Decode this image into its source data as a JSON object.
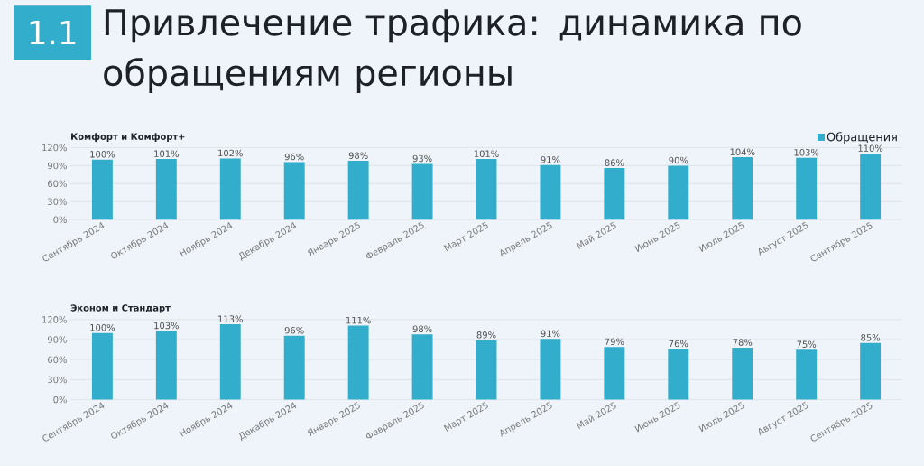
{
  "chart_data": [
    {
      "type": "bar",
      "title": "Комфорт и Комфорт+",
      "annotations": [
        "1.1",
        "Привлечение трафика: динамика по обращениям регионы"
      ],
      "categories": [
        "Сентябрь 2024",
        "Октябрь 2024",
        "Ноябрь 2024",
        "Декабрь 2024",
        "Январь 2025",
        "Февраль 2025",
        "Март 2025",
        "Апрель 2025",
        "Май 2025",
        "Июнь 2025",
        "Июль 2025",
        "Август 2025",
        "Сентябрь 2025"
      ],
      "series": [
        {
          "name": "Обращения",
          "color": "#33adcc",
          "values": [
            100,
            101,
            102,
            96,
            98,
            93,
            101,
            91,
            86,
            90,
            104,
            103,
            110
          ],
          "value_labels": [
            "100%",
            "101%",
            "102%",
            "96%",
            "98%",
            "93%",
            "101%",
            "91%",
            "86%",
            "90%",
            "104%",
            "103%",
            "110%"
          ]
        }
      ],
      "ylim": [
        0,
        120
      ],
      "yticks": [
        {
          "value": 0,
          "label": "0%"
        },
        {
          "value": 30,
          "label": "30%"
        },
        {
          "value": 60,
          "label": "60%"
        },
        {
          "value": 90,
          "label": "90%"
        },
        {
          "value": 120,
          "label": "120%"
        }
      ],
      "grid": "y",
      "legend": "top right"
    },
    {
      "type": "bar",
      "title": "Эконом и Стандарт",
      "categories": [
        "Сентябрь 2024",
        "Октябрь 2024",
        "Ноябрь 2024",
        "Декабрь 2024",
        "Январь 2025",
        "Февраль 2025",
        "Март 2025",
        "Апрель 2025",
        "Май 2025",
        "Июнь 2025",
        "Июль 2025",
        "Август 2025",
        "Сентябрь 2025"
      ],
      "series": [
        {
          "color": "#33adcc",
          "values": [
            100,
            103,
            113,
            96,
            111,
            98,
            89,
            91,
            79,
            76,
            78,
            75,
            85
          ],
          "value_labels": [
            "100%",
            "103%",
            "113%",
            "96%",
            "111%",
            "98%",
            "89%",
            "91%",
            "79%",
            "76%",
            "78%",
            "75%",
            "85%"
          ]
        }
      ],
      "ylim": [
        0,
        120
      ],
      "yticks": [
        {
          "value": 0,
          "label": "0%"
        },
        {
          "value": 30,
          "label": "30%"
        },
        {
          "value": 60,
          "label": "60%"
        },
        {
          "value": 90,
          "label": "90%"
        },
        {
          "value": 120,
          "label": "120%"
        }
      ],
      "grid": "y"
    }
  ]
}
